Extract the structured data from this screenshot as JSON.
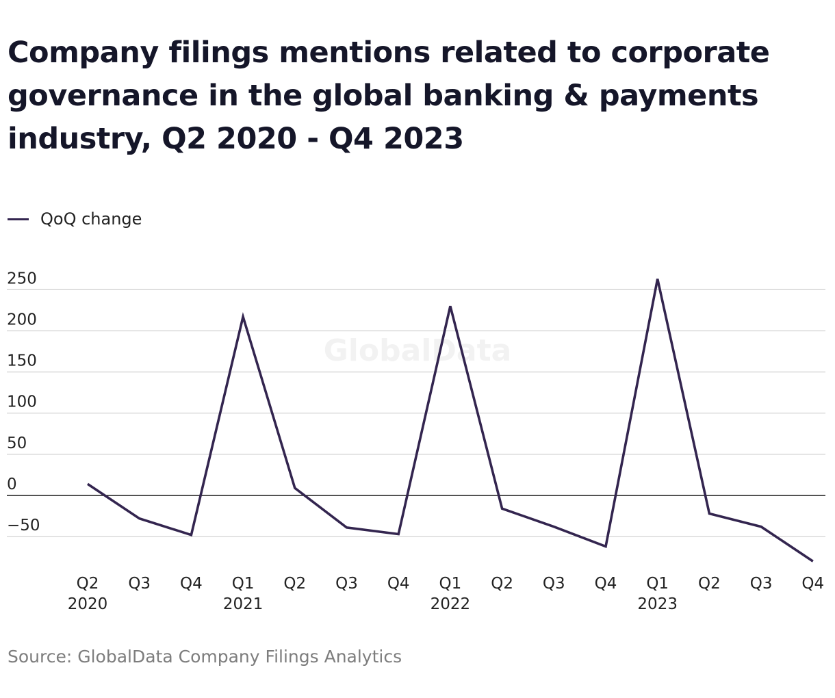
{
  "title": "Company filings mentions related to corporate governance in the global banking & payments industry, Q2 2020 - Q4 2023",
  "legend": {
    "label": "QoQ change",
    "color": "#33254f"
  },
  "source": "Source: GlobalData Company Filings Analytics",
  "watermark": "GlobalData",
  "chart_data": {
    "type": "line",
    "title": "Company filings mentions related to corporate governance in the global banking & payments industry, Q2 2020 - Q4 2023",
    "xlabel": "",
    "ylabel": "",
    "ylim": [
      -50,
      250
    ],
    "yticks": [
      250,
      200,
      150,
      100,
      50,
      0,
      -50
    ],
    "ytick_labels": [
      "250",
      "200",
      "150",
      "100",
      "50",
      "0",
      "−50"
    ],
    "categories": [
      "Q2",
      "Q3",
      "Q4",
      "Q1",
      "Q2",
      "Q3",
      "Q4",
      "Q1",
      "Q2",
      "Q3",
      "Q4",
      "Q1",
      "Q2",
      "Q3",
      "Q4"
    ],
    "year_labels": [
      "2020",
      "",
      "",
      "2021",
      "",
      "",
      "",
      "2022",
      "",
      "",
      "",
      "2023",
      "",
      "",
      ""
    ],
    "grid": true,
    "legend_position": "top-left",
    "series": [
      {
        "name": "QoQ change",
        "color": "#33254f",
        "values": [
          14,
          -28,
          -48,
          217,
          9,
          -39,
          -47,
          230,
          -16,
          -38,
          -62,
          263,
          -22,
          -38,
          -80
        ]
      }
    ]
  }
}
